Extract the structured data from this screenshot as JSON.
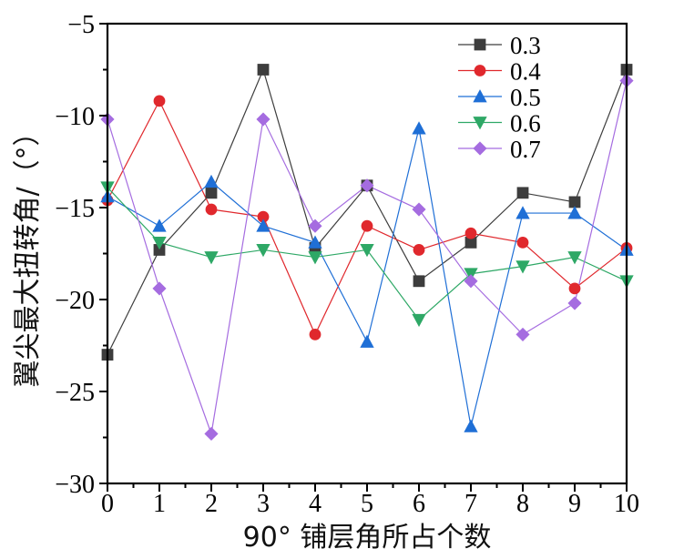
{
  "chart_data": {
    "type": "line",
    "xlabel": "90° 铺层角所占个数",
    "ylabel": "翼尖最大扭转角/（°）",
    "xlim": [
      0,
      10
    ],
    "ylim": [
      -30,
      -5
    ],
    "x_ticks": [
      "0",
      "1",
      "2",
      "3",
      "4",
      "5",
      "6",
      "7",
      "8",
      "9",
      "10"
    ],
    "y_ticks": [
      "−5",
      "−10",
      "−15",
      "−20",
      "−25",
      "−30"
    ],
    "y_tick_values": [
      -5,
      -10,
      -15,
      -20,
      -25,
      -30
    ],
    "x": [
      0,
      1,
      2,
      3,
      4,
      5,
      6,
      7,
      8,
      9,
      10
    ],
    "legend_position": "top-right",
    "grid": false,
    "series": [
      {
        "name": "0.3",
        "color": "#3d3d3d",
        "marker": "square",
        "values": [
          -23.0,
          -17.3,
          -14.2,
          -7.5,
          -17.2,
          -13.8,
          -19.0,
          -16.9,
          -14.2,
          -14.7,
          -7.5
        ]
      },
      {
        "name": "0.4",
        "color": "#e0282d",
        "marker": "circle",
        "values": [
          -14.6,
          -9.2,
          -15.1,
          -15.5,
          -21.9,
          -16.0,
          -17.3,
          -16.4,
          -16.9,
          -19.4,
          -17.2
        ]
      },
      {
        "name": "0.5",
        "color": "#1f6fd6",
        "marker": "triangle-up",
        "values": [
          -14.4,
          -16.0,
          -13.6,
          -16.0,
          -16.9,
          -22.3,
          -10.7,
          -26.9,
          -15.3,
          -15.3,
          -17.3
        ]
      },
      {
        "name": "0.6",
        "color": "#2ea866",
        "marker": "triangle-down",
        "values": [
          -13.9,
          -16.9,
          -17.7,
          -17.3,
          -17.7,
          -17.3,
          -21.1,
          -18.6,
          -18.2,
          -17.7,
          -19.0
        ]
      },
      {
        "name": "0.7",
        "color": "#a56ce0",
        "marker": "diamond",
        "values": [
          -10.2,
          -19.4,
          -27.3,
          -10.2,
          -16.0,
          -13.8,
          -15.1,
          -19.0,
          -21.9,
          -20.2,
          -8.1
        ]
      }
    ]
  }
}
